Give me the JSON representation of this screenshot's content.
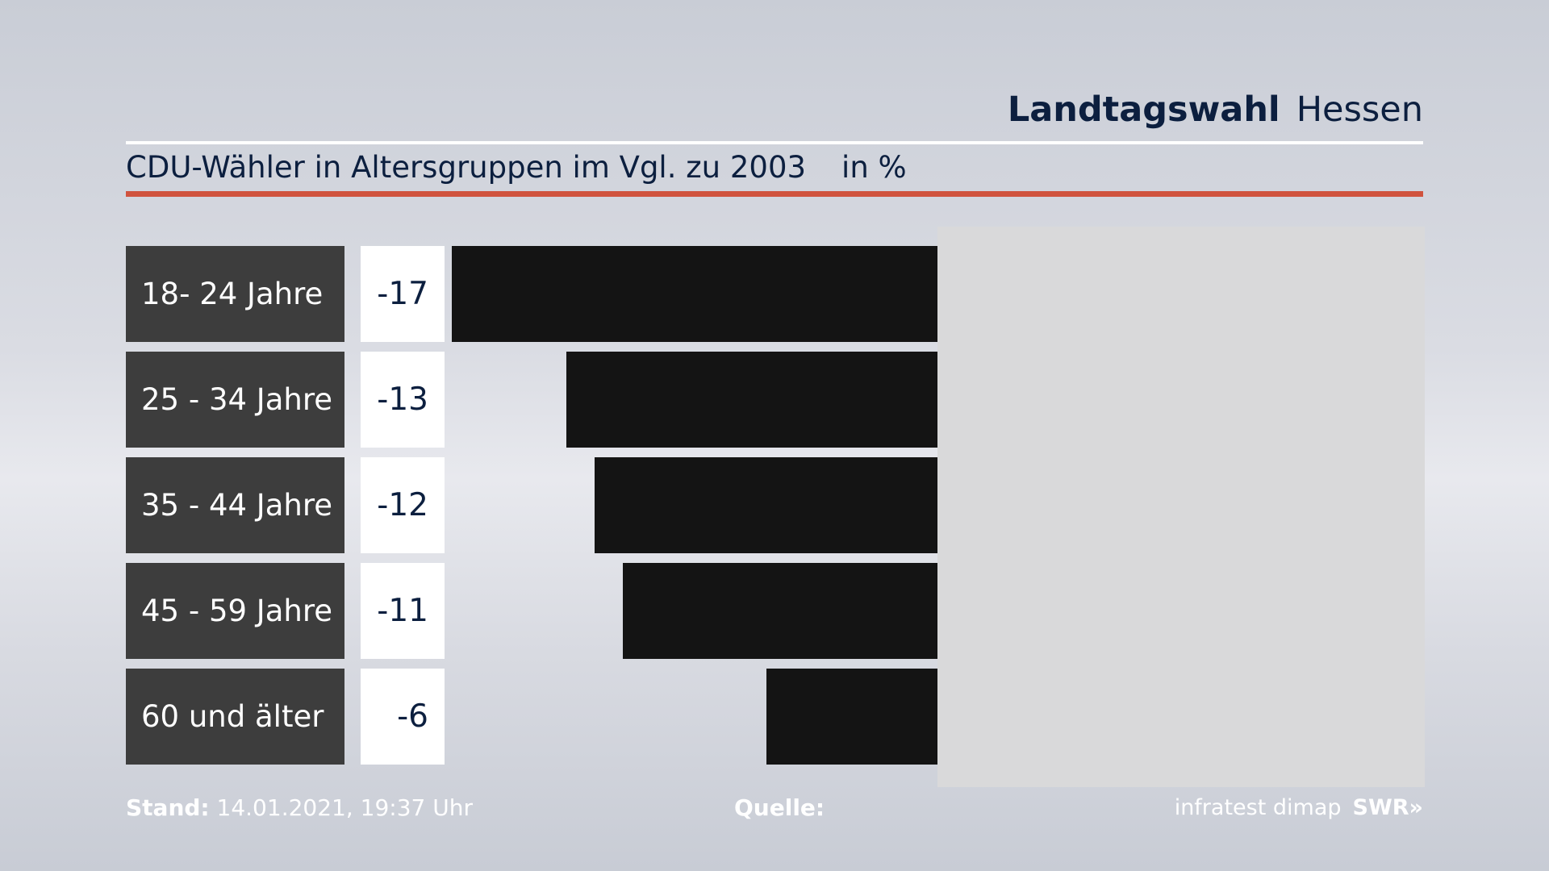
{
  "header": {
    "title_bold": "Landtagswahl",
    "title_region": "Hessen"
  },
  "subtitle": {
    "text": "CDU-Wähler in Altersgruppen im Vgl. zu 2003",
    "unit": "in %"
  },
  "chart_data": {
    "type": "bar",
    "orientation": "horizontal",
    "title": "CDU-Wähler in Altersgruppen im Vgl. zu 2003",
    "unit": "in %",
    "categories": [
      "18- 24 Jahre",
      "25 - 34 Jahre",
      "35 - 44 Jahre",
      "45 - 59 Jahre",
      "60 und älter"
    ],
    "values": [
      -17,
      -13,
      -12,
      -11,
      -6
    ],
    "value_labels": [
      "-17",
      "-13",
      "-12",
      "-11",
      "-6"
    ],
    "xlim": [
      -17,
      17
    ],
    "bar_color": "#141414",
    "label_bg_color": "#3d3d3d"
  },
  "footer": {
    "stand_label": "Stand:",
    "stand_value": "14.01.2021, 19:37 Uhr",
    "quelle_label": "Quelle:",
    "source": "infratest dimap",
    "broadcaster": "SWR",
    "broadcaster_mark": "»"
  },
  "colors": {
    "accent": "#d0533e",
    "text": "#0c1f3f"
  }
}
